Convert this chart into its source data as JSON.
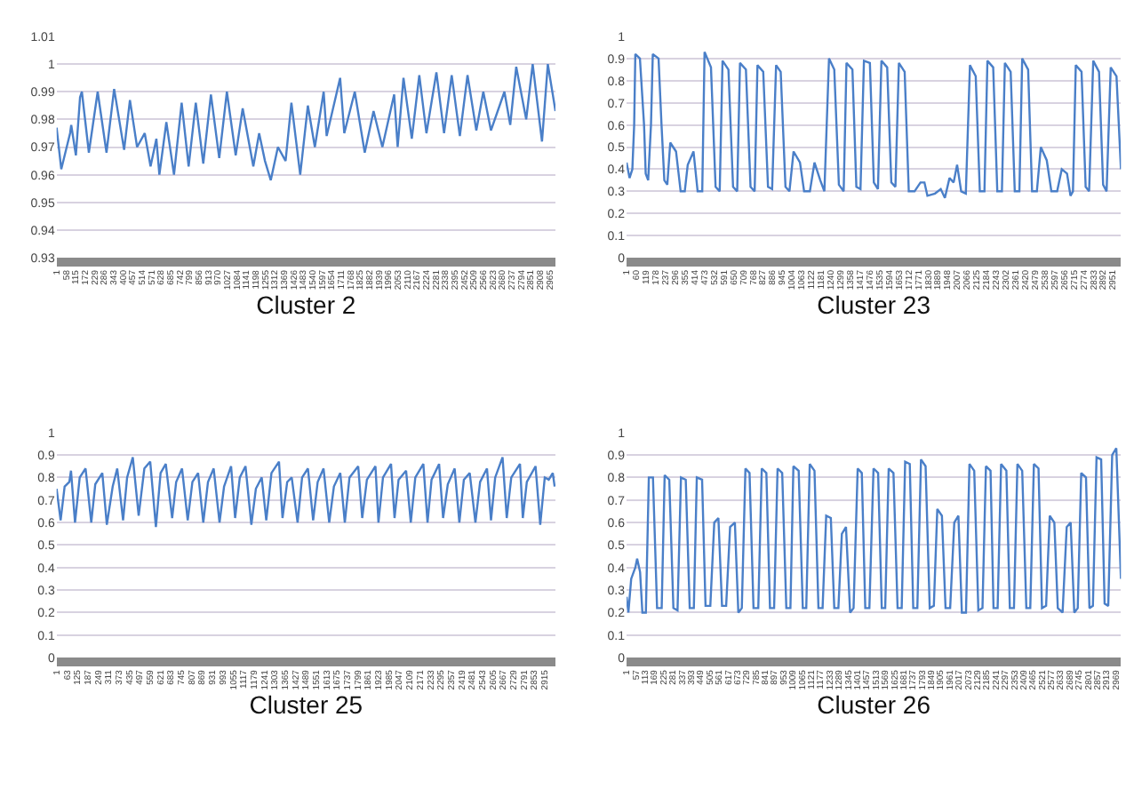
{
  "chart_data": [
    {
      "type": "line",
      "xlabel": "Cluster 2",
      "grid": "y",
      "xlim": [
        1,
        3001
      ],
      "ylim": [
        0.93,
        1.01
      ],
      "yticks": [
        0.93,
        0.94,
        0.95,
        0.96,
        0.97,
        0.98,
        0.99,
        1,
        1.01
      ],
      "xticks": [
        1,
        58,
        115,
        172,
        229,
        286,
        343,
        400,
        457,
        514,
        571,
        628,
        685,
        742,
        799,
        856,
        913,
        970,
        1027,
        1084,
        1141,
        1198,
        1255,
        1312,
        1369,
        1426,
        1483,
        1540,
        1597,
        1654,
        1711,
        1768,
        1825,
        1882,
        1939,
        1996,
        2053,
        2110,
        2167,
        2224,
        2281,
        2338,
        2395,
        2452,
        2509,
        2566,
        2623,
        2680,
        2737,
        2794,
        2851,
        2908,
        2965
      ],
      "x": [
        1,
        29,
        82,
        89,
        117,
        142,
        153,
        195,
        248,
        301,
        347,
        407,
        442,
        485,
        531,
        566,
        601,
        619,
        661,
        707,
        753,
        795,
        838,
        883,
        929,
        979,
        1025,
        1078,
        1120,
        1184,
        1219,
        1254,
        1289,
        1332,
        1378,
        1413,
        1466,
        1512,
        1554,
        1607,
        1625,
        1706,
        1731,
        1794,
        1854,
        1907,
        1960,
        2031,
        2052,
        2087,
        2137,
        2182,
        2225,
        2285,
        2331,
        2377,
        2426,
        2472,
        2525,
        2567,
        2613,
        2694,
        2729,
        2765,
        2825,
        2864,
        2920,
        2955,
        3001
      ],
      "series": [
        {
          "color": "#4a7fc8",
          "values": [
            0.977,
            0.962,
            0.975,
            0.978,
            0.967,
            0.988,
            0.99,
            0.968,
            0.99,
            0.968,
            0.991,
            0.969,
            0.987,
            0.97,
            0.975,
            0.963,
            0.973,
            0.96,
            0.979,
            0.96,
            0.986,
            0.963,
            0.986,
            0.964,
            0.989,
            0.966,
            0.99,
            0.967,
            0.984,
            0.963,
            0.975,
            0.965,
            0.958,
            0.97,
            0.965,
            0.986,
            0.96,
            0.985,
            0.97,
            0.99,
            0.974,
            0.995,
            0.975,
            0.99,
            0.968,
            0.983,
            0.97,
            0.989,
            0.97,
            0.995,
            0.973,
            0.996,
            0.975,
            0.997,
            0.975,
            0.996,
            0.974,
            0.996,
            0.976,
            0.99,
            0.976,
            0.99,
            0.978,
            0.999,
            0.98,
            1.0,
            0.972,
            1.0,
            0.983
          ]
        }
      ]
    },
    {
      "type": "line",
      "xlabel": "Cluster 23",
      "grid": "y",
      "xlim": [
        1,
        3000
      ],
      "ylim": [
        0,
        1
      ],
      "yticks": [
        0,
        0.1,
        0.2,
        0.3,
        0.4,
        0.5,
        0.6,
        0.7,
        0.8,
        0.9,
        1
      ],
      "xticks": [
        1,
        60,
        119,
        178,
        237,
        296,
        355,
        414,
        473,
        532,
        591,
        650,
        709,
        768,
        827,
        886,
        945,
        1004,
        1063,
        1122,
        1181,
        1240,
        1299,
        1358,
        1417,
        1476,
        1535,
        1594,
        1653,
        1712,
        1771,
        1830,
        1889,
        1948,
        2007,
        2066,
        2125,
        2184,
        2243,
        2302,
        2361,
        2420,
        2479,
        2538,
        2597,
        2656,
        2715,
        2774,
        2833,
        2892,
        2951
      ],
      "x": [
        1,
        19,
        36,
        47,
        54,
        82,
        107,
        117,
        132,
        149,
        160,
        195,
        213,
        230,
        248,
        266,
        301,
        329,
        354,
        372,
        407,
        432,
        460,
        474,
        513,
        541,
        566,
        583,
        619,
        647,
        672,
        689,
        725,
        753,
        778,
        795,
        830,
        859,
        884,
        908,
        936,
        965,
        989,
        1014,
        1053,
        1078,
        1113,
        1141,
        1176,
        1201,
        1229,
        1261,
        1289,
        1318,
        1335,
        1371,
        1395,
        1420,
        1441,
        1477,
        1501,
        1526,
        1547,
        1582,
        1607,
        1632,
        1653,
        1688,
        1713,
        1748,
        1784,
        1808,
        1826,
        1872,
        1907,
        1932,
        1960,
        1985,
        2006,
        2031,
        2059,
        2084,
        2119,
        2144,
        2172,
        2190,
        2225,
        2250,
        2278,
        2296,
        2331,
        2356,
        2384,
        2401,
        2437,
        2461,
        2490,
        2514,
        2550,
        2578,
        2613,
        2641,
        2673,
        2694,
        2709,
        2726,
        2761,
        2786,
        2807,
        2832,
        2867,
        2892,
        2913,
        2938,
        2973,
        3000
      ],
      "series": [
        {
          "color": "#4a7fc8",
          "values": [
            0.43,
            0.36,
            0.4,
            0.6,
            0.92,
            0.9,
            0.6,
            0.38,
            0.35,
            0.6,
            0.92,
            0.9,
            0.6,
            0.35,
            0.33,
            0.52,
            0.48,
            0.3,
            0.3,
            0.42,
            0.48,
            0.3,
            0.3,
            0.93,
            0.86,
            0.32,
            0.3,
            0.89,
            0.85,
            0.32,
            0.3,
            0.88,
            0.85,
            0.32,
            0.3,
            0.87,
            0.84,
            0.32,
            0.31,
            0.87,
            0.84,
            0.32,
            0.3,
            0.48,
            0.43,
            0.3,
            0.3,
            0.43,
            0.35,
            0.3,
            0.9,
            0.85,
            0.33,
            0.3,
            0.88,
            0.85,
            0.32,
            0.31,
            0.89,
            0.88,
            0.34,
            0.31,
            0.89,
            0.86,
            0.34,
            0.32,
            0.88,
            0.84,
            0.3,
            0.3,
            0.34,
            0.34,
            0.28,
            0.29,
            0.31,
            0.27,
            0.36,
            0.34,
            0.42,
            0.3,
            0.29,
            0.87,
            0.82,
            0.3,
            0.3,
            0.89,
            0.86,
            0.3,
            0.3,
            0.88,
            0.84,
            0.3,
            0.3,
            0.9,
            0.85,
            0.3,
            0.3,
            0.5,
            0.44,
            0.3,
            0.3,
            0.4,
            0.38,
            0.28,
            0.3,
            0.87,
            0.84,
            0.32,
            0.3,
            0.89,
            0.84,
            0.33,
            0.3,
            0.86,
            0.82,
            0.4
          ]
        }
      ]
    },
    {
      "type": "line",
      "xlabel": "Cluster 25",
      "grid": "y",
      "xlim": [
        1,
        2980
      ],
      "ylim": [
        0,
        1
      ],
      "yticks": [
        0,
        0.1,
        0.2,
        0.3,
        0.4,
        0.5,
        0.6,
        0.7,
        0.8,
        0.9,
        1
      ],
      "xticks": [
        1,
        63,
        125,
        187,
        249,
        311,
        373,
        435,
        497,
        559,
        621,
        683,
        745,
        807,
        869,
        931,
        993,
        1055,
        1117,
        1179,
        1241,
        1303,
        1365,
        1427,
        1489,
        1551,
        1613,
        1675,
        1737,
        1799,
        1861,
        1923,
        1985,
        2047,
        2109,
        2171,
        2233,
        2295,
        2357,
        2419,
        2481,
        2543,
        2605,
        2667,
        2729,
        2791,
        2853,
        2915
      ],
      "x": [
        1,
        25,
        49,
        77,
        87,
        111,
        139,
        174,
        208,
        232,
        274,
        301,
        336,
        363,
        398,
        422,
        456,
        491,
        525,
        560,
        594,
        622,
        653,
        691,
        715,
        750,
        784,
        812,
        846,
        877,
        905,
        939,
        974,
        1001,
        1043,
        1067,
        1095,
        1129,
        1164,
        1191,
        1226,
        1253,
        1284,
        1329,
        1350,
        1378,
        1405,
        1440,
        1467,
        1502,
        1533,
        1560,
        1595,
        1629,
        1657,
        1695,
        1722,
        1750,
        1802,
        1826,
        1854,
        1905,
        1923,
        1950,
        1998,
        2019,
        2043,
        2088,
        2116,
        2143,
        2191,
        2216,
        2240,
        2285,
        2309,
        2337,
        2378,
        2406,
        2433,
        2468,
        2502,
        2530,
        2571,
        2595,
        2620,
        2664,
        2689,
        2716,
        2768,
        2785,
        2809,
        2861,
        2889,
        2916,
        2940,
        2964,
        2975
      ],
      "series": [
        {
          "color": "#4a7fc8",
          "values": [
            0.75,
            0.61,
            0.76,
            0.78,
            0.83,
            0.6,
            0.8,
            0.84,
            0.6,
            0.77,
            0.82,
            0.59,
            0.76,
            0.84,
            0.61,
            0.8,
            0.89,
            0.63,
            0.84,
            0.87,
            0.58,
            0.82,
            0.86,
            0.62,
            0.78,
            0.84,
            0.61,
            0.78,
            0.82,
            0.6,
            0.78,
            0.84,
            0.6,
            0.76,
            0.85,
            0.62,
            0.8,
            0.85,
            0.59,
            0.75,
            0.8,
            0.61,
            0.82,
            0.87,
            0.62,
            0.78,
            0.8,
            0.6,
            0.8,
            0.84,
            0.61,
            0.78,
            0.84,
            0.6,
            0.76,
            0.82,
            0.6,
            0.8,
            0.85,
            0.62,
            0.79,
            0.85,
            0.6,
            0.8,
            0.86,
            0.62,
            0.79,
            0.83,
            0.6,
            0.8,
            0.86,
            0.6,
            0.79,
            0.86,
            0.62,
            0.77,
            0.84,
            0.6,
            0.79,
            0.82,
            0.6,
            0.78,
            0.84,
            0.61,
            0.8,
            0.89,
            0.62,
            0.8,
            0.86,
            0.62,
            0.78,
            0.85,
            0.59,
            0.8,
            0.79,
            0.82,
            0.76
          ]
        }
      ]
    },
    {
      "type": "line",
      "xlabel": "Cluster 26",
      "grid": "y",
      "xlim": [
        1,
        3000
      ],
      "ylim": [
        0,
        1
      ],
      "yticks": [
        0,
        0.1,
        0.2,
        0.3,
        0.4,
        0.5,
        0.6,
        0.7,
        0.8,
        0.9,
        1
      ],
      "xticks": [
        1,
        57,
        113,
        169,
        225,
        281,
        337,
        393,
        449,
        505,
        561,
        617,
        673,
        729,
        785,
        841,
        897,
        953,
        1009,
        1065,
        1121,
        1177,
        1233,
        1289,
        1345,
        1401,
        1457,
        1513,
        1569,
        1625,
        1681,
        1737,
        1793,
        1849,
        1905,
        1961,
        2017,
        2073,
        2129,
        2185,
        2241,
        2297,
        2353,
        2409,
        2465,
        2521,
        2577,
        2633,
        2689,
        2745,
        2801,
        2857,
        2913,
        2969
      ],
      "x": [
        1,
        12,
        29,
        54,
        65,
        83,
        97,
        118,
        136,
        161,
        186,
        214,
        232,
        260,
        285,
        310,
        331,
        360,
        384,
        409,
        427,
        459,
        480,
        509,
        533,
        558,
        580,
        605,
        629,
        658,
        679,
        700,
        722,
        747,
        771,
        800,
        821,
        849,
        871,
        896,
        917,
        945,
        970,
        995,
        1013,
        1045,
        1070,
        1091,
        1112,
        1141,
        1165,
        1190,
        1212,
        1240,
        1261,
        1286,
        1307,
        1332,
        1357,
        1378,
        1403,
        1428,
        1449,
        1474,
        1499,
        1527,
        1549,
        1570,
        1591,
        1620,
        1645,
        1670,
        1691,
        1719,
        1740,
        1765,
        1787,
        1815,
        1840,
        1865,
        1886,
        1914,
        1936,
        1964,
        1989,
        2014,
        2035,
        2060,
        2081,
        2110,
        2135,
        2160,
        2181,
        2209,
        2227,
        2252,
        2273,
        2305,
        2326,
        2351,
        2372,
        2401,
        2426,
        2450,
        2472,
        2500,
        2521,
        2546,
        2568,
        2596,
        2617,
        2646,
        2671,
        2695,
        2717,
        2738,
        2759,
        2788,
        2809,
        2830,
        2852,
        2880,
        2901,
        2923,
        2947,
        2972,
        3000
      ],
      "series": [
        {
          "color": "#4a7fc8",
          "values": [
            0.27,
            0.2,
            0.35,
            0.4,
            0.44,
            0.38,
            0.2,
            0.2,
            0.8,
            0.8,
            0.22,
            0.22,
            0.81,
            0.79,
            0.22,
            0.21,
            0.8,
            0.79,
            0.22,
            0.22,
            0.8,
            0.79,
            0.23,
            0.23,
            0.6,
            0.62,
            0.23,
            0.23,
            0.58,
            0.6,
            0.2,
            0.22,
            0.84,
            0.82,
            0.22,
            0.22,
            0.84,
            0.82,
            0.22,
            0.22,
            0.84,
            0.82,
            0.22,
            0.22,
            0.85,
            0.83,
            0.22,
            0.22,
            0.86,
            0.83,
            0.22,
            0.22,
            0.63,
            0.62,
            0.22,
            0.22,
            0.55,
            0.58,
            0.2,
            0.22,
            0.84,
            0.82,
            0.22,
            0.22,
            0.84,
            0.82,
            0.22,
            0.22,
            0.84,
            0.82,
            0.22,
            0.22,
            0.87,
            0.86,
            0.22,
            0.22,
            0.88,
            0.85,
            0.22,
            0.23,
            0.66,
            0.63,
            0.22,
            0.22,
            0.6,
            0.63,
            0.2,
            0.2,
            0.86,
            0.83,
            0.21,
            0.22,
            0.85,
            0.83,
            0.22,
            0.22,
            0.86,
            0.83,
            0.22,
            0.22,
            0.86,
            0.83,
            0.22,
            0.22,
            0.86,
            0.84,
            0.22,
            0.23,
            0.63,
            0.6,
            0.22,
            0.2,
            0.58,
            0.6,
            0.2,
            0.22,
            0.82,
            0.8,
            0.22,
            0.23,
            0.89,
            0.88,
            0.24,
            0.23,
            0.9,
            0.93,
            0.35
          ]
        }
      ]
    }
  ]
}
